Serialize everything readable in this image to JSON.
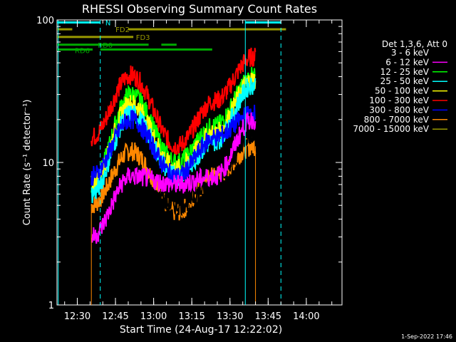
{
  "chart_data": {
    "type": "line",
    "title": "RHESSI Observing Summary Count Rates",
    "xlabel": "Start Time (24-Aug-17 12:22:02)",
    "ylabel": "Count Rate (s⁻¹ detector⁻¹)",
    "yscale": "log",
    "ylim": [
      1,
      100
    ],
    "xlim_minutes_after_1222": [
      0,
      112
    ],
    "x_ticks": [
      {
        "label": "12:30",
        "min": 7.97
      },
      {
        "label": "12:45",
        "min": 22.97
      },
      {
        "label": "13:00",
        "min": 37.97
      },
      {
        "label": "13:15",
        "min": 52.97
      },
      {
        "label": "13:30",
        "min": 67.97
      },
      {
        "label": "13:45",
        "min": 82.97
      },
      {
        "label": "14:00",
        "min": 97.97
      }
    ],
    "y_ticks": [
      {
        "label": "1",
        "v": 1
      },
      {
        "label": "10",
        "v": 10
      },
      {
        "label": "100",
        "v": 100
      }
    ],
    "legend_header": "Det 1,3,6, Att 0",
    "legend_placement": "right",
    "series": [
      {
        "name": "3 - 6 keV",
        "color": "#000000",
        "levels": [
          null,
          7,
          5,
          7,
          16
        ]
      },
      {
        "name": "6 - 12 keV",
        "color": "#ff00ff",
        "levels": [
          3,
          8,
          7,
          8,
          20
        ]
      },
      {
        "name": "12 - 25 keV",
        "color": "#00ff00",
        "levels": [
          7,
          30,
          10,
          18,
          40
        ]
      },
      {
        "name": "25 - 50 keV",
        "color": "#00ffff",
        "levels": [
          6,
          22,
          8,
          14,
          35
        ]
      },
      {
        "name": "50 - 100 keV",
        "color": "#ffff00",
        "levels": [
          7,
          26,
          9,
          16,
          38
        ]
      },
      {
        "name": "100 - 300 keV",
        "color": "#ff0000",
        "levels": [
          15,
          41,
          13,
          27,
          55
        ]
      },
      {
        "name": "300 - 800 keV",
        "color": "#0000ff",
        "levels": [
          8,
          20,
          8,
          15,
          22
        ]
      },
      {
        "name": "800 - 7000 keV",
        "color": "#ff8800",
        "levels": [
          5,
          12,
          4.5,
          8,
          13
        ]
      },
      {
        "name": "7000 - 15000 keV",
        "color": "#999900",
        "levels": []
      }
    ],
    "flags": [
      {
        "label": "N",
        "color": "#00ffff",
        "y": 96,
        "segments": [
          [
            0,
            17
          ],
          [
            74,
            88
          ]
        ]
      },
      {
        "label": "FD2",
        "color": "#999900",
        "y": 86,
        "segments": [
          [
            0,
            6
          ],
          [
            28,
            90
          ]
        ]
      },
      {
        "label": "FD3",
        "color": "#999900",
        "y": 76,
        "segments": [
          [
            0,
            30
          ]
        ]
      },
      {
        "label": "RD0",
        "color": "#00aa00",
        "y": 67,
        "segments": [
          [
            0,
            36
          ],
          [
            41,
            47
          ]
        ]
      },
      {
        "label": "RD6",
        "color": "#00aa00",
        "y": 62,
        "segments": [
          [
            0,
            14
          ],
          [
            17,
            61
          ]
        ]
      }
    ]
  },
  "footer": {
    "timestamp": "1-Sep-2022 17:46"
  }
}
